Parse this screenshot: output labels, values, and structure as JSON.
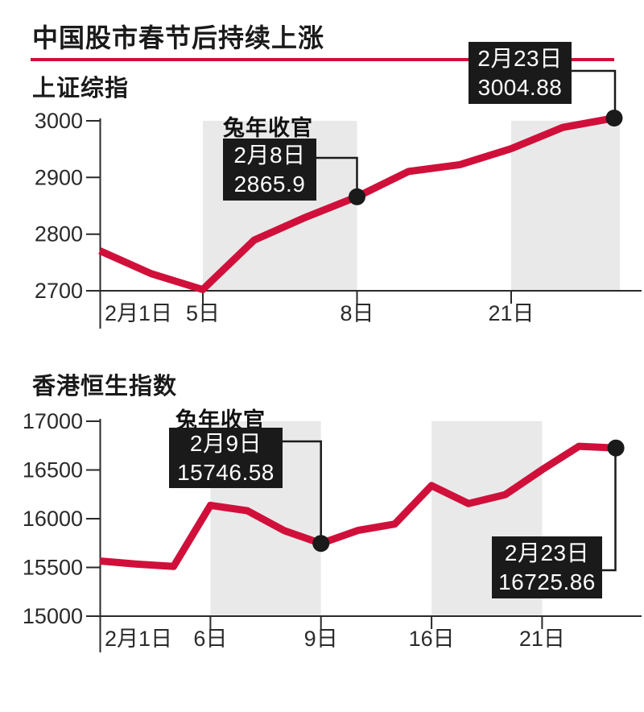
{
  "header": {
    "title": "中国股市春节后持续上涨",
    "accent_color": "#d0103a",
    "band_color": "#e9e9e9"
  },
  "chart_data": [
    {
      "type": "line",
      "title": "上证综指",
      "x": [
        "2月1日",
        "2月2日",
        "2月5日",
        "2月6日",
        "2月7日",
        "2月8日",
        "2月19日",
        "2月20日",
        "2月21日",
        "2月22日",
        "2月23日"
      ],
      "values": [
        2770.7,
        2730.2,
        2702.2,
        2789.5,
        2829.7,
        2865.9,
        2910.5,
        2922.7,
        2951.0,
        2988.4,
        3004.88
      ],
      "ylim": [
        2700,
        3000
      ],
      "yticks": [
        "3000",
        "2900",
        "2800",
        "2700"
      ],
      "xticks": [
        {
          "label": "2月1日",
          "index": 0
        },
        {
          "label": "5日",
          "index": 2
        },
        {
          "label": "8日",
          "index": 5
        },
        {
          "label": "21日",
          "index": 8
        }
      ],
      "grid": false,
      "legend": false,
      "line_color": "#d0103a",
      "shaded_band_indices": [
        [
          2,
          5
        ],
        [
          8,
          10.1
        ]
      ],
      "annotations": [
        {
          "tag": "兔年收官",
          "label": "2月8日",
          "value": "2865.9",
          "point_index": 5
        },
        {
          "label": "2月23日",
          "value": "3004.88",
          "point_index": 10
        }
      ]
    },
    {
      "type": "line",
      "title": "香港恒生指数",
      "x": [
        "2月1日",
        "2月2日",
        "2月5日",
        "2月6日",
        "2月7日",
        "2月8日",
        "2月9日",
        "2月14日",
        "2月15日",
        "2月16日",
        "2月19日",
        "2月20日",
        "2月21日",
        "2月22日",
        "2月23日"
      ],
      "values": [
        15566.2,
        15533.6,
        15510.0,
        16136.9,
        16081.9,
        15878.1,
        15746.58,
        15879.4,
        15944.6,
        16340.0,
        16155.6,
        16247.5,
        16503.1,
        16743.0,
        16725.86
      ],
      "ylim": [
        15000,
        17000
      ],
      "yticks": [
        "17000",
        "16500",
        "16000",
        "15500",
        "15000"
      ],
      "xticks": [
        {
          "label": "2月1日",
          "index": 0
        },
        {
          "label": "6日",
          "index": 3
        },
        {
          "label": "9日",
          "index": 6
        },
        {
          "label": "16日",
          "index": 9
        },
        {
          "label": "21日",
          "index": 12
        }
      ],
      "grid": false,
      "legend": false,
      "line_color": "#d0103a",
      "shaded_band_indices": [
        [
          3,
          6
        ],
        [
          9,
          12
        ]
      ],
      "annotations": [
        {
          "tag": "兔年收官",
          "label": "2月9日",
          "value": "15746.58",
          "point_index": 6
        },
        {
          "label": "2月23日",
          "value": "16725.86",
          "point_index": 14
        }
      ]
    }
  ]
}
